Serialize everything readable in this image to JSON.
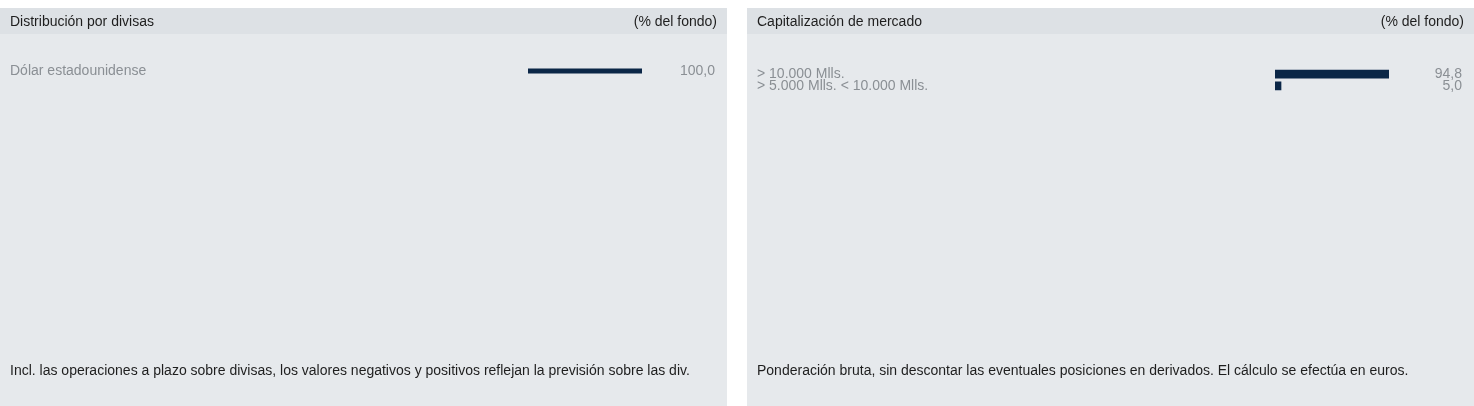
{
  "chart_data": [
    {
      "type": "bar",
      "orientation": "horizontal",
      "title": "Distribución por divisas",
      "subtitle": "(% del fondo)",
      "categories": [
        "Dólar estadounidense"
      ],
      "values": [
        100
      ],
      "value_labels": [
        "100,0"
      ],
      "color": "#0b2747",
      "annotations": [
        "Incl. las operaciones a plazo sobre divisas, los valores negativos y positivos reflejan la previsión sobre las div."
      ]
    },
    {
      "type": "bar",
      "orientation": "horizontal",
      "title": "Capitalización de mercado",
      "subtitle": "(% del fondo)",
      "categories": [
        "> 10.000 Mlls.",
        "> 5.000 Mlls. < 10.000 Mlls."
      ],
      "values": [
        94.8,
        5.0
      ],
      "value_labels": [
        "94,8",
        "5,0"
      ],
      "color": "#0b2747",
      "annotations": [
        "Ponderación bruta, sin descontar las eventuales posiciones en derivados. El cálculo se efectúa en euros."
      ]
    }
  ]
}
